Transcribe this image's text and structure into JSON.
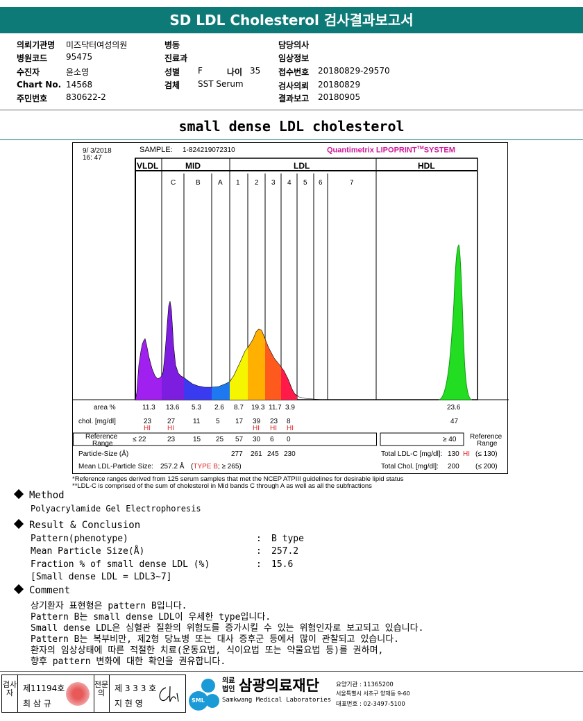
{
  "report": {
    "title": "SD LDL Cholesterol 검사결과보고서",
    "fields": {
      "institution_label": "의뢰기관명",
      "institution": "미즈닥터여성의원",
      "hospital_code_label": "병원코드",
      "hospital_code": "95475",
      "patient_label": "수진자",
      "patient": "윤소영",
      "chart_no_label": "Chart No.",
      "chart_no": "14568",
      "resident_no_label": "주민번호",
      "resident_no": "830622-2",
      "ward_label": "병동",
      "dept_label": "진료과",
      "sex_label": "성별",
      "sex": "F",
      "age_label": "나이",
      "age": "35",
      "specimen_label": "검체",
      "specimen": "SST Serum",
      "doctor_label": "담당의사",
      "clinical_label": "임상정보",
      "receipt_label": "접수번호",
      "receipt": "20180829-29570",
      "request_label": "검사의뢰",
      "request": "20180829",
      "result_label": "결과보고",
      "result": "20180905"
    },
    "section_title": "small dense LDL cholesterol"
  },
  "chart_data": {
    "type": "area",
    "date": "9/ 3/2018",
    "time": "16: 47",
    "sample_label": "SAMPLE:",
    "sample": "1-824219072310",
    "brand": "Quantimetrix LIPOPRINT",
    "brand_tm": "TM",
    "brand_tail": "SYSTEM",
    "groups": {
      "vldl": "VLDL",
      "mid": "MID",
      "ldl": "LDL",
      "hdl": "HDL"
    },
    "bands": [
      "C",
      "B",
      "A",
      "1",
      "2",
      "3",
      "4",
      "5",
      "6",
      "7"
    ],
    "area_label": "area %",
    "chol_label": "chol. [mg/dl]",
    "ref_label_1": "Reference",
    "ref_label_2": "Range",
    "ref_right_1": "Reference",
    "ref_right_2": "Range",
    "area": [
      "11.3",
      "13.6",
      "5.3",
      "2.6",
      "8.7",
      "19.3",
      "11.7",
      "3.9"
    ],
    "chol": [
      "23",
      "27",
      "11",
      "5",
      "17",
      "39",
      "23",
      "8"
    ],
    "flags": [
      "HI",
      "HI",
      "",
      "",
      "",
      "HI",
      "HI",
      "HI"
    ],
    "ref": [
      "≤ 22",
      "23",
      "15",
      "25",
      "57",
      "30",
      "6",
      "0"
    ],
    "particle_size_label": "Particle-Size (Å)",
    "particle_sizes": [
      "277",
      "261",
      "245",
      "230"
    ],
    "mean_size_label": "Mean LDL-Particle Size:",
    "mean_size": "257.2 Å",
    "mean_type_open": "(",
    "mean_type": "TYPE B",
    "mean_type_rest": "; ≥ 265)",
    "hdl_area": "23.6",
    "hdl_chol": "47",
    "hdl_ref": "≥ 40",
    "total_ldl_label": "Total LDL-C [mg/dl]:",
    "total_ldl": "130",
    "total_ldl_flag": "HI",
    "total_ldl_ref": "(≤ 130)",
    "total_chol_label": "Total Chol. [mg/dl]:",
    "total_chol": "200",
    "total_chol_ref": "(≤ 200)"
  },
  "notes": {
    "n1": "*Reference ranges derived from 125 serum samples that met the NCEP ATPIII guidelines for desirable lipid status",
    "n2": "**LDL-C is comprised of the sum of cholesterol in Mid bands C through A as well as all the subfractions"
  },
  "method": {
    "heading": "Method",
    "text": "Polyacrylamide Gel Electrophoresis"
  },
  "result": {
    "heading": "Result & Conclusion",
    "rows": [
      {
        "label": "Pattern(phenotype)",
        "sep": ":",
        "value": "B type"
      },
      {
        "label": "Mean Particle Size(Å)",
        "sep": ":",
        "value": "257.2"
      },
      {
        "label": "Fraction % of small dense LDL (%)",
        "sep": ":",
        "value": "15.6"
      }
    ],
    "note": "[Small dense LDL = LDL3~7]"
  },
  "comment": {
    "heading": "Comment",
    "lines": [
      "상기환자 표현형은 pattern B입니다.",
      "Pattern B는 small dense LDL이 우세한 type입니다.",
      "Small dense LDL은 심혈관 질환의 위험도를 증가시킬 수 있는 위험인자로 보고되고 있습니다.",
      "Pattern B는 복부비만, 제2형 당뇨병 또는 대사 증후군 등에서 많이 관찰되고 있습니다.",
      "환자의 임상상태에 따른 적절한 치료(운동요법, 식이요법 또는 약물요법 등)를 권하며,",
      "향후 pattern 변화에 대한 확인을 권유합니다."
    ]
  },
  "footer": {
    "tester_label": "검사자",
    "tester_no": "제11194호",
    "tester_name": "최 삼 규",
    "specialist_label": "전문의",
    "specialist_no": "제 3 3 3 호",
    "specialist_name": "지 현 영",
    "org_type": "의료법인",
    "org_name": "삼광의료재단",
    "org_en": "Samkwang Medical Laboratories",
    "logo_text": "SML",
    "care_no": "요양기관 : 11365200",
    "address": "서울특별시 서초구 양재동 9-60",
    "phone": "대표번호 : 02-3497-5100"
  },
  "colors": {
    "banner": "#0e7a78",
    "hi": "#e02020",
    "brand": "#d0189a",
    "hdl_peak": "#22dd22"
  }
}
